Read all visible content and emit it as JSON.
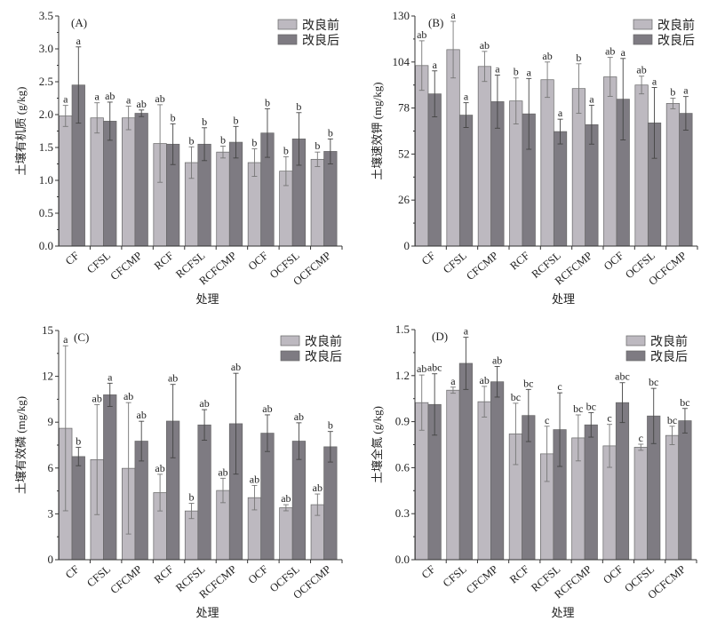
{
  "legend": [
    "改良前",
    "改良后"
  ],
  "colors": {
    "before": "#bdb9c0",
    "after": "#7e7b82",
    "axis": "#333333"
  },
  "chart_data": [
    {
      "type": "bar",
      "panel_label": "(A)",
      "xlabel": "处理",
      "ylabel": "土壤有机质 (g/kg)",
      "ylim": [
        0,
        3.5
      ],
      "yticks": [
        "0.0",
        "0.5",
        "1.0",
        "1.5",
        "2.0",
        "2.5",
        "3.0",
        "3.5"
      ],
      "categories": [
        "CF",
        "CFSL",
        "CFCMP",
        "RCF",
        "RCFSL",
        "RCFCMP",
        "OCF",
        "OCFSL",
        "OCFCMP"
      ],
      "series": [
        {
          "name": "改良前",
          "values": [
            1.98,
            1.95,
            1.95,
            1.56,
            1.27,
            1.43,
            1.27,
            1.14,
            1.32
          ],
          "errors": [
            0.16,
            0.23,
            0.18,
            0.59,
            0.24,
            0.09,
            0.21,
            0.22,
            0.11
          ],
          "letters": [
            "a",
            "a",
            "a",
            "ab",
            "b",
            "b",
            "b",
            "b",
            "b"
          ]
        },
        {
          "name": "改良后",
          "values": [
            2.45,
            1.9,
            2.02,
            1.55,
            1.55,
            1.58,
            1.72,
            1.63,
            1.44
          ],
          "errors": [
            0.58,
            0.29,
            0.05,
            0.31,
            0.25,
            0.24,
            0.37,
            0.4,
            0.19
          ],
          "letters": [
            "a",
            "ab",
            "ab",
            "b",
            "b",
            "b",
            "b",
            "b",
            "b"
          ]
        }
      ]
    },
    {
      "type": "bar",
      "panel_label": "(B)",
      "xlabel": "处理",
      "ylabel": "土壤速效钾 (mg/kg)",
      "ylim": [
        0,
        130
      ],
      "yticks": [
        "0",
        "26",
        "52",
        "78",
        "104",
        "130"
      ],
      "categories": [
        "CF",
        "CFSL",
        "CFCMP",
        "RCF",
        "RCFSL",
        "RCFCMP",
        "OCF",
        "OCFSL",
        "OCFCMP"
      ],
      "series": [
        {
          "name": "改良前",
          "values": [
            102,
            111,
            101.5,
            82,
            94,
            89,
            95.6,
            91,
            80.6
          ],
          "errors": [
            14,
            16,
            8.5,
            13,
            10,
            14,
            11,
            5,
            3
          ],
          "letters": [
            "ab",
            "a",
            "ab",
            "b",
            "ab",
            "b",
            "ab",
            "ab",
            "b"
          ]
        },
        {
          "name": "改良后",
          "values": [
            86,
            74,
            81.6,
            74.7,
            64.7,
            68.6,
            83,
            69.6,
            75
          ],
          "errors": [
            13,
            7,
            15,
            20,
            7,
            11,
            23,
            20,
            9.5
          ],
          "letters": [
            "a",
            "a",
            "a",
            "a",
            "a",
            "a",
            "a",
            "a",
            "a"
          ]
        }
      ]
    },
    {
      "type": "bar",
      "panel_label": "(C)",
      "xlabel": "处理",
      "ylabel": "土壤有效磷 (mg/kg)",
      "ylim": [
        0,
        15
      ],
      "yticks": [
        "0",
        "3",
        "6",
        "9",
        "12",
        "15"
      ],
      "categories": [
        "CF",
        "CFSL",
        "CFCMP",
        "RCF",
        "RCFSL",
        "RCFCMP",
        "OCF",
        "OCFSL",
        "OCFCMP"
      ],
      "series": [
        {
          "name": "改良前",
          "values": [
            8.6,
            6.55,
            5.98,
            4.39,
            3.19,
            4.53,
            4.06,
            3.4,
            3.6
          ],
          "errors": [
            5.4,
            3.6,
            4.3,
            1.2,
            0.5,
            0.8,
            0.8,
            0.2,
            0.7
          ],
          "letters": [
            "a",
            "ab",
            "ab",
            "ab",
            "b",
            "ab",
            "ab",
            "ab",
            "ab"
          ]
        },
        {
          "name": "改良后",
          "values": [
            6.75,
            10.79,
            7.76,
            9.07,
            8.82,
            8.9,
            8.28,
            7.76,
            7.39
          ],
          "errors": [
            0.6,
            0.76,
            1.3,
            2.4,
            1.0,
            3.3,
            1.2,
            1.2,
            1.0
          ],
          "letters": [
            "b",
            "a",
            "ab",
            "ab",
            "ab",
            "ab",
            "ab",
            "ab",
            "b"
          ]
        }
      ]
    },
    {
      "type": "bar",
      "panel_label": "(D)",
      "xlabel": "处理",
      "ylabel": "土壤全氮 (g/kg)",
      "ylim": [
        0,
        1.5
      ],
      "yticks": [
        "0.0",
        "0.3",
        "0.6",
        "0.9",
        "1.2",
        "1.5"
      ],
      "categories": [
        "CF",
        "CFSL",
        "CFCMP",
        "RCF",
        "RCFSL",
        "RCFCMP",
        "OCF",
        "OCFSL",
        "OCFCMP"
      ],
      "series": [
        {
          "name": "改良前",
          "values": [
            1.024,
            1.105,
            1.03,
            0.82,
            0.69,
            0.794,
            0.742,
            0.733,
            0.81
          ],
          "errors": [
            0.18,
            0.02,
            0.1,
            0.2,
            0.18,
            0.15,
            0.14,
            0.02,
            0.06
          ],
          "letters": [
            "ab",
            "a",
            "ab",
            "bc",
            "c",
            "bc",
            "c",
            "c",
            "bc"
          ]
        },
        {
          "name": "改良后",
          "values": [
            1.012,
            1.28,
            1.16,
            0.94,
            0.848,
            0.879,
            1.024,
            0.937,
            0.906
          ],
          "errors": [
            0.2,
            0.17,
            0.1,
            0.17,
            0.24,
            0.08,
            0.13,
            0.18,
            0.08
          ],
          "letters": [
            "abc",
            "a",
            "ab",
            "bc",
            "c",
            "bc",
            "abc",
            "bc",
            "bc"
          ]
        }
      ]
    }
  ]
}
